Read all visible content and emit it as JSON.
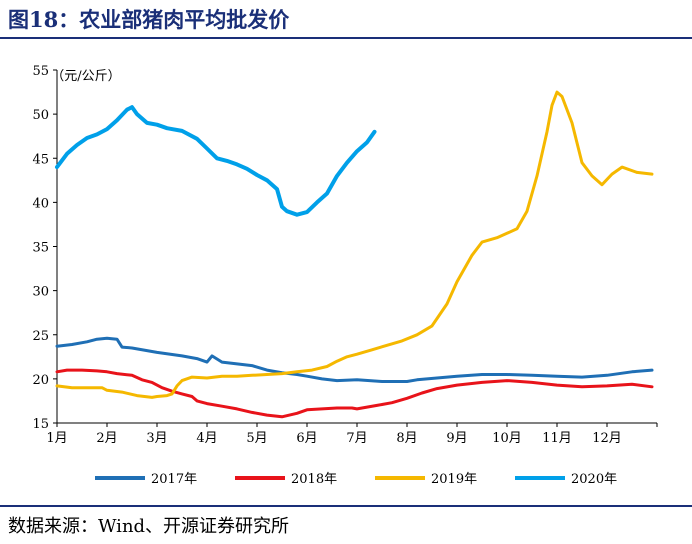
{
  "title": "图18：农业部猪肉平均批发价",
  "source": "数据来源：Wind、开源证券研究所",
  "chart_data": {
    "type": "line",
    "ylabel": "（元/公斤）",
    "ylim": [
      15,
      55
    ],
    "yticks": [
      15,
      20,
      25,
      30,
      35,
      40,
      45,
      50,
      55
    ],
    "xlim": [
      1,
      13
    ],
    "categories": [
      "1月",
      "2月",
      "3月",
      "4月",
      "5月",
      "6月",
      "7月",
      "8月",
      "9月",
      "10月",
      "11月",
      "12月"
    ],
    "series": [
      {
        "name": "2017年",
        "color": "#1f6fb5",
        "x": [
          1.0,
          1.3,
          1.6,
          1.8,
          2.0,
          2.2,
          2.3,
          2.5,
          2.8,
          3.0,
          3.5,
          3.8,
          4.0,
          4.1,
          4.3,
          4.6,
          4.9,
          5.2,
          5.5,
          5.8,
          6.0,
          6.3,
          6.6,
          7.0,
          7.5,
          8.0,
          8.2,
          8.6,
          9.0,
          9.5,
          10.0,
          10.5,
          11.0,
          11.5,
          12.0,
          12.5,
          12.9
        ],
        "values": [
          23.7,
          23.9,
          24.2,
          24.5,
          24.6,
          24.5,
          23.6,
          23.5,
          23.2,
          23.0,
          22.6,
          22.3,
          21.9,
          22.6,
          21.9,
          21.7,
          21.5,
          21.0,
          20.7,
          20.5,
          20.3,
          20.0,
          19.8,
          19.9,
          19.7,
          19.7,
          19.9,
          20.1,
          20.3,
          20.5,
          20.5,
          20.4,
          20.3,
          20.2,
          20.4,
          20.8,
          21.0
        ]
      },
      {
        "name": "2018年",
        "color": "#e8131a",
        "x": [
          1.0,
          1.2,
          1.5,
          1.8,
          2.0,
          2.2,
          2.5,
          2.7,
          2.9,
          3.1,
          3.3,
          3.5,
          3.7,
          3.8,
          4.0,
          4.3,
          4.6,
          4.9,
          5.2,
          5.5,
          5.8,
          6.0,
          6.3,
          6.6,
          6.9,
          7.0,
          7.2,
          7.4,
          7.7,
          8.0,
          8.3,
          8.6,
          9.0,
          9.5,
          10.0,
          10.5,
          11.0,
          11.5,
          12.0,
          12.5,
          12.9
        ],
        "values": [
          20.8,
          21.0,
          21.0,
          20.9,
          20.8,
          20.6,
          20.4,
          19.9,
          19.6,
          19.0,
          18.6,
          18.3,
          18.0,
          17.5,
          17.2,
          16.9,
          16.6,
          16.2,
          15.9,
          15.7,
          16.1,
          16.5,
          16.6,
          16.7,
          16.7,
          16.6,
          16.8,
          17.0,
          17.3,
          17.8,
          18.4,
          18.9,
          19.3,
          19.6,
          19.8,
          19.6,
          19.3,
          19.1,
          19.2,
          19.4,
          19.1
        ]
      },
      {
        "name": "2019年",
        "color": "#f5b800",
        "x": [
          1.0,
          1.3,
          1.6,
          1.9,
          2.0,
          2.3,
          2.6,
          2.9,
          3.0,
          3.2,
          3.3,
          3.4,
          3.5,
          3.7,
          4.0,
          4.3,
          4.6,
          4.9,
          5.2,
          5.5,
          5.8,
          6.1,
          6.4,
          6.6,
          6.8,
          7.0,
          7.3,
          7.6,
          7.9,
          8.2,
          8.5,
          8.8,
          9.0,
          9.3,
          9.5,
          9.8,
          10.0,
          10.2,
          10.4,
          10.6,
          10.8,
          10.9,
          11.0,
          11.1,
          11.3,
          11.5,
          11.7,
          11.9,
          12.1,
          12.3,
          12.6,
          12.9
        ],
        "values": [
          19.2,
          19.0,
          19.0,
          19.0,
          18.7,
          18.5,
          18.1,
          17.9,
          18.0,
          18.1,
          18.3,
          19.2,
          19.8,
          20.2,
          20.1,
          20.3,
          20.3,
          20.4,
          20.5,
          20.6,
          20.8,
          21.0,
          21.4,
          22.0,
          22.5,
          22.8,
          23.3,
          23.8,
          24.3,
          25.0,
          26.0,
          28.5,
          31.0,
          34.0,
          35.5,
          36.0,
          36.5,
          37.0,
          39.0,
          43.0,
          48.0,
          51.0,
          52.5,
          52.0,
          49.0,
          44.5,
          43.0,
          42.0,
          43.2,
          44.0,
          43.4,
          43.2
        ]
      },
      {
        "name": "2020年",
        "color": "#00a0e9",
        "x": [
          1.0,
          1.2,
          1.4,
          1.6,
          1.8,
          2.0,
          2.2,
          2.4,
          2.5,
          2.6,
          2.8,
          3.0,
          3.2,
          3.5,
          3.8,
          4.0,
          4.2,
          4.4,
          4.6,
          4.8,
          5.0,
          5.2,
          5.4,
          5.5,
          5.6,
          5.8,
          6.0,
          6.2,
          6.4,
          6.6,
          6.8,
          7.0,
          7.2,
          7.35
        ],
        "values": [
          44.0,
          45.5,
          46.5,
          47.3,
          47.7,
          48.3,
          49.3,
          50.5,
          50.8,
          50.0,
          49.0,
          48.8,
          48.4,
          48.1,
          47.2,
          46.1,
          45.0,
          44.7,
          44.3,
          43.8,
          43.1,
          42.5,
          41.5,
          39.5,
          39.0,
          38.6,
          38.9,
          40.0,
          41.0,
          43.0,
          44.5,
          45.8,
          46.8,
          48.0
        ]
      }
    ]
  }
}
